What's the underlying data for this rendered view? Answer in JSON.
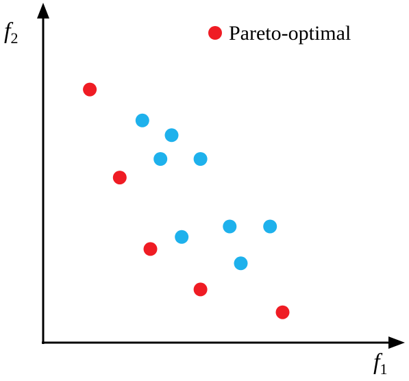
{
  "diagram": {
    "y_axis_label": {
      "var": "f",
      "sub": "2"
    },
    "x_axis_label": {
      "var": "f",
      "sub": "1"
    },
    "legend": {
      "label": "Pareto-optimal",
      "color": "#ef1c24"
    }
  },
  "colors": {
    "pareto_optimal": "#ef1c24",
    "dominated": "#1eb1ec",
    "axis": "#000000"
  },
  "chart_data": {
    "type": "scatter",
    "xlabel": "f1",
    "ylabel": "f2",
    "xlim": [
      0,
      100
    ],
    "ylim": [
      0,
      100
    ],
    "grid": false,
    "legend_position": "top-right",
    "series": [
      {
        "name": "Pareto-optimal",
        "color": "#ef1c24",
        "x": [
          13.4,
          22.0,
          30.8,
          45.2,
          68.8
        ],
        "y": [
          77.6,
          50.6,
          28.7,
          16.3,
          9.3
        ]
      },
      {
        "color": "#1eb1ec",
        "x": [
          28.5,
          36.9,
          33.7,
          45.2,
          39.8,
          53.6,
          65.2,
          56.8
        ],
        "y": [
          68.1,
          63.6,
          56.3,
          56.3,
          32.4,
          35.6,
          35.6,
          24.3
        ]
      }
    ]
  }
}
